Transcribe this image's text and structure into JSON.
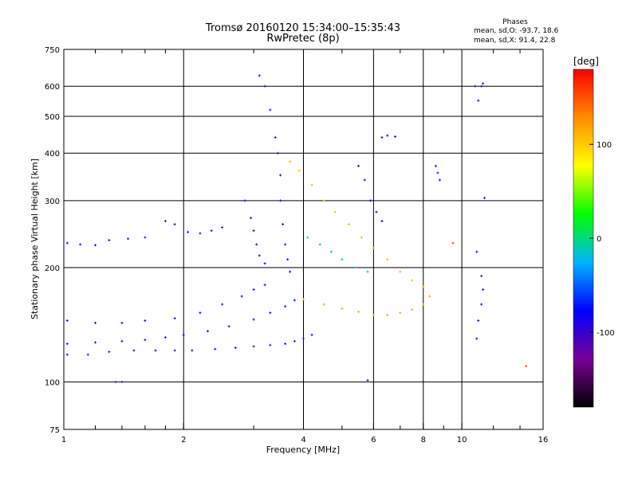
{
  "chart_data": {
    "type": "scatter",
    "title": "Tromsø 20160120 15:34:00–15:35:43",
    "subtitle": "RwPretec (8p)",
    "xlabel": "Frequency [MHz]",
    "ylabel": "Stationary phase Virtual Height [km]",
    "x_scale": "log",
    "y_scale": "log",
    "xlim": [
      1,
      16
    ],
    "ylim": [
      75,
      750
    ],
    "x_ticks": [
      1,
      2,
      4,
      6,
      8,
      10,
      16
    ],
    "y_ticks": [
      75,
      100,
      200,
      300,
      400,
      500,
      600,
      750
    ],
    "x_minor_ticks": [
      1.2,
      1.4,
      1.6,
      1.8,
      3,
      5,
      7,
      9,
      12,
      14
    ],
    "grid": true,
    "stats": {
      "heading": "Phases",
      "line_o": "mean, sd,O: -93.7, 18.6",
      "line_x": "mean, sd,X:  91.4, 22.8"
    },
    "colorbar": {
      "label": "[deg]",
      "range": [
        -180,
        180
      ],
      "ticks": [
        100,
        0,
        -100
      ],
      "colors": [
        "#000000",
        "#7a0096",
        "#0000ff",
        "#00b4ff",
        "#00ff00",
        "#ffff00",
        "#ff8c00",
        "#ff0000"
      ]
    },
    "series": [
      {
        "values": [
          [
            1.02,
            232
          ],
          [
            1.1,
            230
          ],
          [
            1.2,
            229
          ],
          [
            1.3,
            236
          ],
          [
            1.45,
            238
          ],
          [
            1.6,
            240
          ],
          [
            1.8,
            265
          ],
          [
            1.9,
            260
          ],
          [
            2.05,
            248
          ],
          [
            2.2,
            246
          ],
          [
            2.35,
            250
          ],
          [
            2.5,
            255
          ]
        ],
        "phase": -100
      },
      {
        "values": [
          [
            1.02,
            118
          ],
          [
            1.15,
            118
          ],
          [
            1.3,
            120
          ],
          [
            1.5,
            121
          ],
          [
            1.7,
            121
          ],
          [
            1.9,
            121
          ],
          [
            2.1,
            121
          ],
          [
            2.4,
            122
          ],
          [
            2.7,
            123
          ],
          [
            3.0,
            124
          ],
          [
            3.3,
            125
          ],
          [
            3.6,
            126
          ],
          [
            3.8,
            128
          ],
          [
            4.0,
            130
          ],
          [
            4.2,
            133
          ]
        ],
        "phase": -105
      },
      {
        "values": [
          [
            1.02,
            126
          ],
          [
            1.2,
            127
          ],
          [
            1.4,
            128
          ],
          [
            1.6,
            129
          ],
          [
            1.8,
            131
          ],
          [
            2.0,
            133
          ],
          [
            2.3,
            136
          ],
          [
            2.6,
            140
          ],
          [
            3.0,
            146
          ],
          [
            3.3,
            152
          ],
          [
            3.6,
            158
          ],
          [
            3.8,
            164
          ]
        ],
        "phase": -95
      },
      {
        "values": [
          [
            1.02,
            145
          ],
          [
            1.2,
            143
          ],
          [
            1.4,
            143
          ],
          [
            1.6,
            145
          ],
          [
            1.9,
            147
          ],
          [
            2.2,
            152
          ],
          [
            2.5,
            160
          ],
          [
            2.8,
            168
          ],
          [
            3.0,
            175
          ],
          [
            3.2,
            180
          ]
        ],
        "phase": -100
      },
      {
        "values": [
          [
            3.1,
            640
          ],
          [
            3.2,
            600
          ],
          [
            3.3,
            520
          ],
          [
            3.4,
            440
          ],
          [
            3.45,
            400
          ],
          [
            3.5,
            350
          ],
          [
            3.5,
            300
          ],
          [
            3.55,
            260
          ],
          [
            3.6,
            230
          ],
          [
            3.65,
            210
          ],
          [
            3.7,
            195
          ]
        ],
        "phase": -100
      },
      {
        "values": [
          [
            2.85,
            300
          ],
          [
            2.95,
            270
          ],
          [
            3.0,
            250
          ],
          [
            3.05,
            230
          ],
          [
            3.1,
            215
          ],
          [
            3.2,
            205
          ]
        ],
        "phase": -100
      },
      {
        "values": [
          [
            3.7,
            380
          ],
          [
            3.9,
            360
          ],
          [
            4.2,
            330
          ],
          [
            4.5,
            300
          ],
          [
            4.8,
            280
          ],
          [
            5.2,
            260
          ],
          [
            5.6,
            240
          ],
          [
            6.0,
            225
          ],
          [
            6.5,
            210
          ],
          [
            7.0,
            195
          ],
          [
            7.5,
            185
          ],
          [
            8.0,
            178
          ]
        ],
        "phase": 110
      },
      {
        "values": [
          [
            4.0,
            165
          ],
          [
            4.5,
            160
          ],
          [
            5.0,
            156
          ],
          [
            5.5,
            153
          ],
          [
            6.0,
            150
          ],
          [
            6.5,
            150
          ],
          [
            7.0,
            152
          ],
          [
            7.5,
            155
          ],
          [
            8.0,
            160
          ],
          [
            8.3,
            168
          ]
        ],
        "phase": 115
      },
      {
        "values": [
          [
            5.5,
            370
          ],
          [
            5.7,
            340
          ],
          [
            5.9,
            300
          ],
          [
            6.1,
            280
          ],
          [
            6.3,
            265
          ]
        ],
        "phase": -80
      },
      {
        "values": [
          [
            4.1,
            240
          ],
          [
            4.4,
            230
          ],
          [
            4.7,
            220
          ],
          [
            5.0,
            210
          ],
          [
            5.4,
            200
          ],
          [
            5.8,
            195
          ]
        ],
        "phase": -20
      },
      {
        "values": [
          [
            6.3,
            440
          ],
          [
            6.5,
            445
          ],
          [
            6.8,
            442
          ]
        ],
        "phase": -90
      },
      {
        "values": [
          [
            8.6,
            370
          ],
          [
            8.7,
            355
          ],
          [
            8.8,
            340
          ]
        ],
        "phase": -70
      },
      {
        "values": [
          [
            10.8,
            600
          ],
          [
            11.0,
            550
          ],
          [
            11.2,
            600
          ],
          [
            11.3,
            610
          ]
        ],
        "phase": -100
      },
      {
        "values": [
          [
            10.9,
            130
          ],
          [
            11.0,
            145
          ],
          [
            11.2,
            160
          ],
          [
            11.3,
            175
          ],
          [
            11.2,
            190
          ],
          [
            10.9,
            220
          ],
          [
            11.4,
            305
          ]
        ],
        "phase": -95
      },
      {
        "values": [
          [
            1.35,
            100
          ],
          [
            1.4,
            100
          ],
          [
            5.8,
            101
          ]
        ],
        "phase": -110
      },
      {
        "values": [
          [
            14.5,
            110
          ],
          [
            9.5,
            232
          ]
        ],
        "phase": 150
      }
    ]
  }
}
